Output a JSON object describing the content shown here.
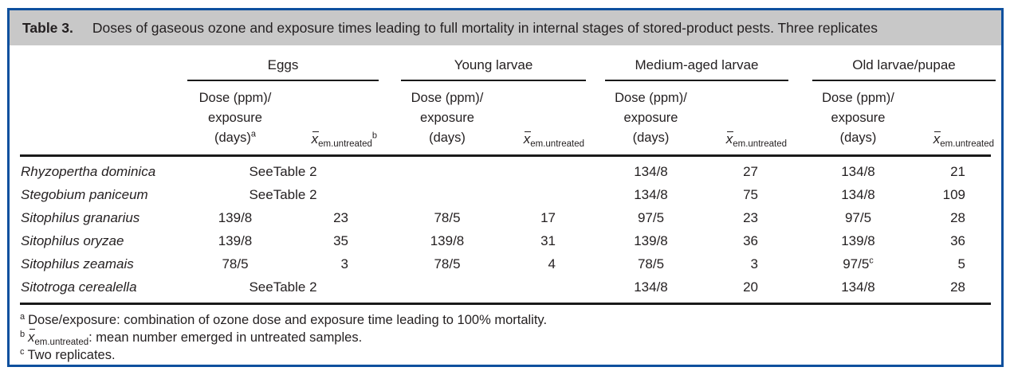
{
  "colors": {
    "frame_blue": "#0e509e",
    "titlebar_gray": "#c8c8c8",
    "text": "#231f20",
    "rule_black": "#1a1a1a"
  },
  "title": {
    "label": "Table 3.",
    "text": "Doses of gaseous ozone and exposure times leading to full mortality in internal stages of stored-product pests. Three replicates"
  },
  "table": {
    "xbar": {
      "base": "x",
      "sub": "em.untreated"
    },
    "groups": [
      {
        "label": "Eggs",
        "dose_line1": "Dose (ppm)/",
        "dose_line2": "exposure",
        "dose_line3": "(days)",
        "dose_sup": "a",
        "xbar_sup": "b"
      },
      {
        "label": "Young larvae",
        "dose_line1": "Dose (ppm)/",
        "dose_line2": "exposure",
        "dose_line3": "(days)",
        "dose_sup": "",
        "xbar_sup": ""
      },
      {
        "label": "Medium-aged larvae",
        "dose_line1": "Dose (ppm)/",
        "dose_line2": "exposure",
        "dose_line3": "(days)",
        "dose_sup": "",
        "xbar_sup": ""
      },
      {
        "label": "Old larvae/pupae",
        "dose_line1": "Dose (ppm)/",
        "dose_line2": "exposure",
        "dose_line3": "(days)",
        "dose_sup": "",
        "xbar_sup": ""
      }
    ],
    "rows": [
      {
        "species": "Rhyzopertha dominica",
        "eggs_span": "SeeTable 2",
        "young_dose": "",
        "young_x": "",
        "medium_dose": "134/8",
        "medium_x": "27",
        "old_dose": "134/8",
        "old_x": "21"
      },
      {
        "species": "Stegobium paniceum",
        "eggs_span": "SeeTable 2",
        "young_dose": "",
        "young_x": "",
        "medium_dose": "134/8",
        "medium_x": "75",
        "old_dose": "134/8",
        "old_x": "109"
      },
      {
        "species": "Sitophilus granarius",
        "eggs_dose": "139/8",
        "eggs_x": "23",
        "young_dose": "78/5",
        "young_x": "17",
        "medium_dose": "97/5",
        "medium_x": "23",
        "old_dose": "97/5",
        "old_x": "28"
      },
      {
        "species": "Sitophilus oryzae",
        "eggs_dose": "139/8",
        "eggs_x": "35",
        "young_dose": "139/8",
        "young_x": "31",
        "medium_dose": "139/8",
        "medium_x": "36",
        "old_dose": "139/8",
        "old_x": "36"
      },
      {
        "species": "Sitophilus zeamais",
        "eggs_dose": "78/5",
        "eggs_x": "3",
        "young_dose": "78/5",
        "young_x": "4",
        "medium_dose": "78/5",
        "medium_x": "3",
        "old_dose": "97/5",
        "old_dose_sup": "c",
        "old_x": "5"
      },
      {
        "species": "Sitotroga cerealella",
        "eggs_span": "SeeTable 2",
        "young_dose": "",
        "young_x": "",
        "medium_dose": "134/8",
        "medium_x": "20",
        "old_dose": "134/8",
        "old_x": "28"
      }
    ]
  },
  "footnotes": {
    "a": {
      "marker": "a",
      "text": "Dose/exposure: combination of ozone dose and exposure time leading to 100% mortality."
    },
    "b": {
      "marker": "b",
      "xbar_base": "x",
      "xbar_sub": "em.untreated",
      "text": ": mean number emerged in untreated samples."
    },
    "c": {
      "marker": "c",
      "text": "Two replicates."
    }
  }
}
